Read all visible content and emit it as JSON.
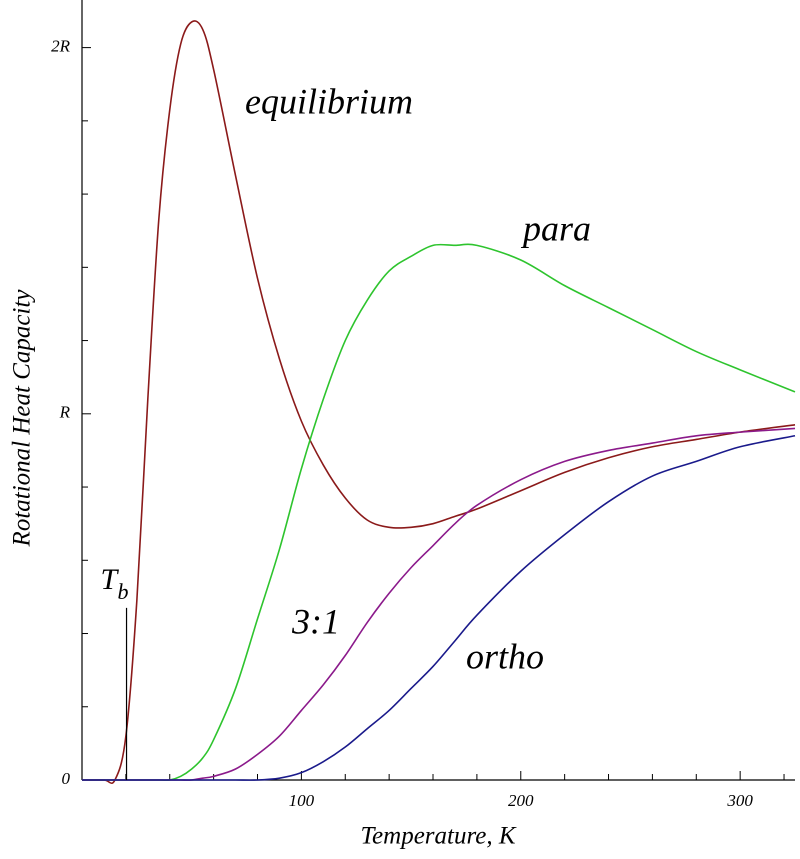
{
  "chart_data": {
    "type": "line",
    "xlabel": "Temperature, K",
    "ylabel": "Rotational Heat Capacity",
    "x": [
      0,
      10,
      15,
      20,
      25,
      30,
      35,
      40,
      45,
      50,
      55,
      60,
      70,
      80,
      90,
      100,
      110,
      120,
      130,
      140,
      150,
      160,
      170,
      180,
      200,
      220,
      240,
      260,
      280,
      300,
      325
    ],
    "series": [
      {
        "name": "equilibrium",
        "color": "#8b1a1a",
        "values": [
          0,
          0,
          0,
          0.12,
          0.49,
          1.04,
          1.53,
          1.83,
          2.01,
          2.07,
          2.05,
          1.94,
          1.65,
          1.37,
          1.15,
          0.98,
          0.86,
          0.77,
          0.71,
          0.69,
          0.69,
          0.7,
          0.72,
          0.74,
          0.79,
          0.84,
          0.88,
          0.91,
          0.93,
          0.95,
          0.97
        ]
      },
      {
        "name": "para",
        "color": "#2ec42e",
        "values": [
          0,
          0,
          0,
          0,
          0,
          0,
          0,
          0,
          0.01,
          0.03,
          0.06,
          0.11,
          0.25,
          0.44,
          0.63,
          0.85,
          1.04,
          1.2,
          1.31,
          1.39,
          1.43,
          1.46,
          1.46,
          1.46,
          1.42,
          1.35,
          1.29,
          1.23,
          1.17,
          1.12,
          1.06
        ]
      },
      {
        "name": "3:1",
        "color": "#8b1a8b",
        "values": [
          0,
          0,
          0,
          0,
          0,
          0,
          0,
          0,
          0,
          0,
          0.005,
          0.01,
          0.03,
          0.07,
          0.12,
          0.19,
          0.26,
          0.34,
          0.43,
          0.51,
          0.58,
          0.64,
          0.7,
          0.75,
          0.82,
          0.87,
          0.9,
          0.92,
          0.94,
          0.95,
          0.96
        ]
      },
      {
        "name": "ortho",
        "color": "#1a1a8b",
        "values": [
          0,
          0,
          0,
          0,
          0,
          0,
          0,
          0,
          0,
          0,
          0,
          0,
          0,
          0,
          0.005,
          0.02,
          0.05,
          0.09,
          0.14,
          0.19,
          0.25,
          0.31,
          0.38,
          0.45,
          0.57,
          0.67,
          0.76,
          0.83,
          0.87,
          0.91,
          0.94
        ]
      }
    ],
    "xlim": [
      0,
      325
    ],
    "ylim": [
      0,
      2.13
    ],
    "xticks": [
      100,
      200,
      300
    ],
    "yticks": [
      0,
      {
        "value": 1,
        "label": "R"
      },
      {
        "value": 2,
        "label": "2R"
      }
    ],
    "xminorticks": [
      20,
      40,
      60,
      80,
      120,
      140,
      160,
      180,
      220,
      240,
      260,
      280,
      320
    ],
    "yminorticks": [
      0.2,
      0.4,
      0.6,
      0.8,
      1.2,
      1.4,
      1.6,
      1.8
    ],
    "annotation": {
      "text": "T",
      "subscript": "b",
      "x": 20.3,
      "y_top": 0.47
    }
  }
}
